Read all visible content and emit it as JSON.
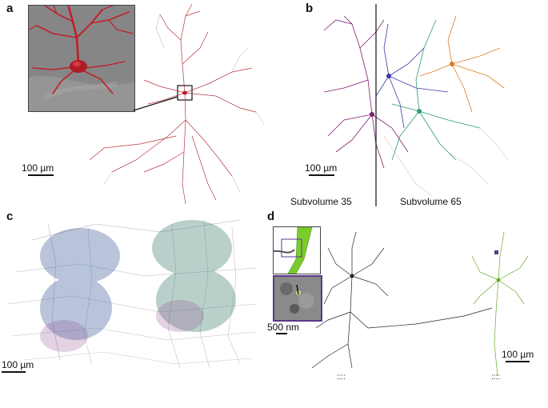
{
  "figure": {
    "panels": [
      {
        "label": "a",
        "scale_label": "100 µm"
      },
      {
        "label": "b",
        "scale_label": "100 µm",
        "left_caption": "Subvolume 35",
        "right_caption": "Subvolume 65"
      },
      {
        "label": "c",
        "scale_label": "100 µm"
      },
      {
        "label": "d",
        "scale_label": "100 µm",
        "inset_scale_label": "500 nm",
        "dots": "::::"
      }
    ],
    "colors": {
      "neuron_a": "#b3202a",
      "inset_bg": "#7a7a7a",
      "inset_neuron": "#c0202a",
      "neuron_b1": "#7a1e6e",
      "neuron_b2": "#3a3aa8",
      "neuron_b3": "#2a9a7a",
      "neuron_b4": "#e07a20",
      "neuron_d1": "#222222",
      "neuron_d2": "#6aaa2a",
      "inset_frame": "#5a3a8a",
      "dendrite_green": "#7acc2a"
    }
  }
}
